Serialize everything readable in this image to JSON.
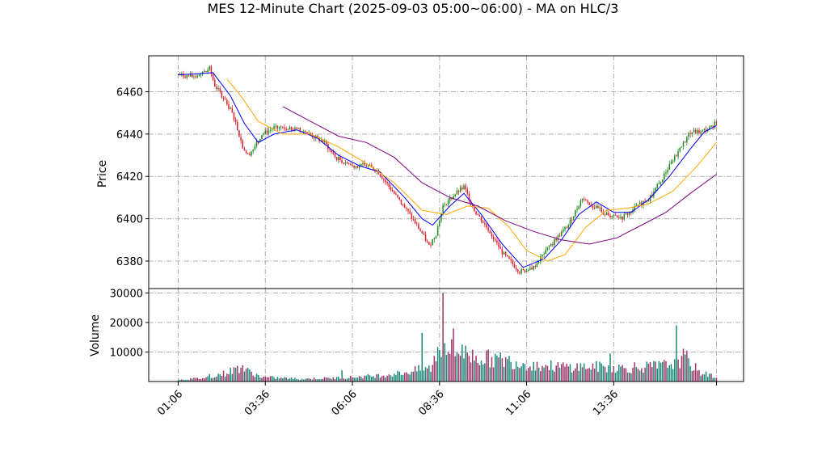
{
  "chart_data": {
    "type": "candlestick",
    "title": "MES 12-Minute Chart (2025-09-03 05:00~06:00) - MA on HLC/3",
    "price_panel": {
      "ylabel": "Price",
      "ylim": [
        6367,
        6477
      ],
      "yticks": [
        6380,
        6400,
        6420,
        6440,
        6460
      ],
      "grid": true
    },
    "volume_panel": {
      "ylabel": "Volume",
      "ylim": [
        0,
        31500
      ],
      "yticks": [
        10000,
        20000,
        30000
      ],
      "grid": true
    },
    "xticks": [
      "01:06",
      "03:36",
      "06:06",
      "08:36",
      "11:06",
      "13:36"
    ],
    "price_path": [
      {
        "t": 0,
        "p": 6468
      },
      {
        "t": 8,
        "p": 6467
      },
      {
        "t": 18,
        "p": 6471
      },
      {
        "t": 21,
        "p": 6463
      },
      {
        "t": 27,
        "p": 6456
      },
      {
        "t": 32,
        "p": 6448
      },
      {
        "t": 37,
        "p": 6434
      },
      {
        "t": 40,
        "p": 6430
      },
      {
        "t": 43,
        "p": 6433
      },
      {
        "t": 48,
        "p": 6440
      },
      {
        "t": 55,
        "p": 6443
      },
      {
        "t": 68,
        "p": 6442
      },
      {
        "t": 75,
        "p": 6440
      },
      {
        "t": 84,
        "p": 6436
      },
      {
        "t": 90,
        "p": 6429
      },
      {
        "t": 100,
        "p": 6425
      },
      {
        "t": 108,
        "p": 6425
      },
      {
        "t": 114,
        "p": 6423
      },
      {
        "t": 123,
        "p": 6413
      },
      {
        "t": 132,
        "p": 6403
      },
      {
        "t": 140,
        "p": 6393
      },
      {
        "t": 144,
        "p": 6387
      },
      {
        "t": 148,
        "p": 6393
      },
      {
        "t": 152,
        "p": 6406
      },
      {
        "t": 158,
        "p": 6411
      },
      {
        "t": 164,
        "p": 6415
      },
      {
        "t": 170,
        "p": 6404
      },
      {
        "t": 178,
        "p": 6395
      },
      {
        "t": 186,
        "p": 6384
      },
      {
        "t": 196,
        "p": 6375
      },
      {
        "t": 204,
        "p": 6377
      },
      {
        "t": 212,
        "p": 6386
      },
      {
        "t": 224,
        "p": 6397
      },
      {
        "t": 232,
        "p": 6410
      },
      {
        "t": 238,
        "p": 6406
      },
      {
        "t": 246,
        "p": 6402
      },
      {
        "t": 254,
        "p": 6400
      },
      {
        "t": 262,
        "p": 6405
      },
      {
        "t": 272,
        "p": 6411
      },
      {
        "t": 282,
        "p": 6425
      },
      {
        "t": 288,
        "p": 6433
      },
      {
        "t": 294,
        "p": 6441
      },
      {
        "t": 300,
        "p": 6441
      },
      {
        "t": 306,
        "p": 6443
      },
      {
        "t": 309,
        "p": 6447
      }
    ],
    "ma_fast": {
      "color": "#0000ff",
      "points": [
        [
          0,
          6468
        ],
        [
          20,
          6469
        ],
        [
          30,
          6458
        ],
        [
          38,
          6445
        ],
        [
          46,
          6436
        ],
        [
          55,
          6440
        ],
        [
          68,
          6442
        ],
        [
          80,
          6438
        ],
        [
          92,
          6430
        ],
        [
          104,
          6425
        ],
        [
          116,
          6422
        ],
        [
          130,
          6410
        ],
        [
          140,
          6400
        ],
        [
          146,
          6397
        ],
        [
          156,
          6406
        ],
        [
          164,
          6412
        ],
        [
          174,
          6402
        ],
        [
          186,
          6388
        ],
        [
          198,
          6377
        ],
        [
          210,
          6381
        ],
        [
          220,
          6390
        ],
        [
          230,
          6402
        ],
        [
          240,
          6408
        ],
        [
          250,
          6403
        ],
        [
          260,
          6403
        ],
        [
          270,
          6409
        ],
        [
          282,
          6420
        ],
        [
          294,
          6433
        ],
        [
          302,
          6441
        ],
        [
          309,
          6444
        ]
      ]
    },
    "ma_mid": {
      "color": "#ffa500",
      "points": [
        [
          28,
          6466
        ],
        [
          36,
          6458
        ],
        [
          46,
          6446
        ],
        [
          60,
          6440
        ],
        [
          76,
          6440
        ],
        [
          92,
          6434
        ],
        [
          110,
          6425
        ],
        [
          124,
          6417
        ],
        [
          140,
          6404
        ],
        [
          154,
          6402
        ],
        [
          166,
          6406
        ],
        [
          178,
          6405
        ],
        [
          190,
          6396
        ],
        [
          200,
          6385
        ],
        [
          212,
          6380
        ],
        [
          222,
          6383
        ],
        [
          234,
          6396
        ],
        [
          246,
          6404
        ],
        [
          258,
          6405
        ],
        [
          270,
          6407
        ],
        [
          284,
          6413
        ],
        [
          298,
          6425
        ],
        [
          309,
          6436
        ]
      ]
    },
    "ma_slow": {
      "color": "#800080",
      "points": [
        [
          60,
          6453
        ],
        [
          76,
          6446
        ],
        [
          92,
          6439
        ],
        [
          108,
          6436
        ],
        [
          124,
          6429
        ],
        [
          140,
          6417
        ],
        [
          156,
          6410
        ],
        [
          172,
          6406
        ],
        [
          188,
          6399
        ],
        [
          204,
          6394
        ],
        [
          220,
          6390
        ],
        [
          236,
          6388
        ],
        [
          252,
          6391
        ],
        [
          266,
          6397
        ],
        [
          280,
          6403
        ],
        [
          294,
          6412
        ],
        [
          309,
          6421
        ]
      ]
    },
    "volume_path": [
      {
        "t": 0,
        "v": 600
      },
      {
        "t": 15,
        "v": 1200
      },
      {
        "t": 28,
        "v": 3000
      },
      {
        "t": 36,
        "v": 5000
      },
      {
        "t": 40,
        "v": 3500
      },
      {
        "t": 48,
        "v": 1500
      },
      {
        "t": 70,
        "v": 900
      },
      {
        "t": 90,
        "v": 1200
      },
      {
        "t": 100,
        "v": 1500
      },
      {
        "t": 115,
        "v": 2000
      },
      {
        "t": 130,
        "v": 3000
      },
      {
        "t": 138,
        "v": 4000
      },
      {
        "t": 145,
        "v": 4500
      },
      {
        "t": 150,
        "v": 12000
      },
      {
        "t": 160,
        "v": 10000
      },
      {
        "t": 175,
        "v": 8000
      },
      {
        "t": 190,
        "v": 7000
      },
      {
        "t": 205,
        "v": 5500
      },
      {
        "t": 220,
        "v": 5000
      },
      {
        "t": 240,
        "v": 5000
      },
      {
        "t": 260,
        "v": 4500
      },
      {
        "t": 280,
        "v": 5500
      },
      {
        "t": 290,
        "v": 8000
      },
      {
        "t": 300,
        "v": 3000
      },
      {
        "t": 309,
        "v": 1500
      }
    ],
    "volume_spikes": [
      {
        "t": 140,
        "v": 16500
      },
      {
        "t": 152,
        "v": 30000
      },
      {
        "t": 153,
        "v": 13000
      },
      {
        "t": 158,
        "v": 18000
      },
      {
        "t": 163,
        "v": 12500
      },
      {
        "t": 286,
        "v": 19000
      },
      {
        "t": 292,
        "v": 10500
      },
      {
        "t": 18,
        "v": 2500
      },
      {
        "t": 37,
        "v": 5500
      },
      {
        "t": 94,
        "v": 3800
      },
      {
        "t": 248,
        "v": 9500
      },
      {
        "t": 262,
        "v": 6500
      }
    ],
    "colors": {
      "up": "#228b22",
      "down": "#e0202a",
      "vol_up": "#1a8a7a",
      "vol_down": "#9b3a6a"
    }
  }
}
